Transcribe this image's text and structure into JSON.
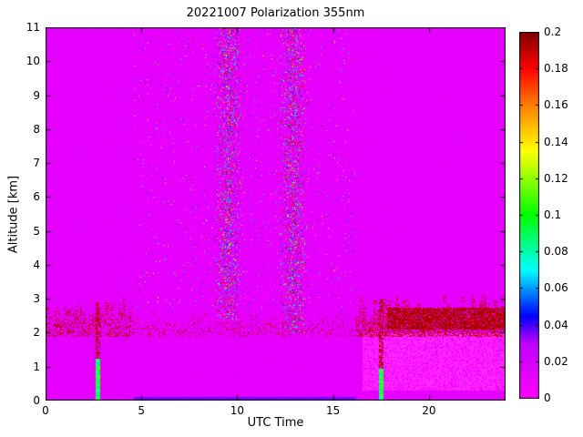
{
  "title": "20221007 Polarization 355nm",
  "axes": {
    "xlabel": "UTC Time",
    "ylabel": "Altitude [km]"
  },
  "chart_data": {
    "type": "heatmap",
    "title": "20221007 Polarization 355nm",
    "xlabel": "UTC Time",
    "ylabel": "Altitude [km]",
    "xlim": [
      0,
      24
    ],
    "ylim": [
      0,
      11
    ],
    "clim": [
      0,
      0.2
    ],
    "x_ticks": [
      0,
      5,
      10,
      15,
      20
    ],
    "y_ticks": [
      0,
      1,
      2,
      3,
      4,
      5,
      6,
      7,
      8,
      9,
      10,
      11
    ],
    "colorbar_ticks": [
      "0",
      "0.02",
      "0.04",
      "0.06",
      "0.08",
      "0.1",
      "0.12",
      "0.14",
      "0.16",
      "0.18",
      "0.2"
    ],
    "colormap": [
      {
        "v": 0.0,
        "c": "#ff00ff"
      },
      {
        "v": 0.03,
        "c": "#c000ff"
      },
      {
        "v": 0.045,
        "c": "#0000ff"
      },
      {
        "v": 0.07,
        "c": "#00ffff"
      },
      {
        "v": 0.1,
        "c": "#00ff00"
      },
      {
        "v": 0.135,
        "c": "#ffff00"
      },
      {
        "v": 0.16,
        "c": "#ff8000"
      },
      {
        "v": 0.18,
        "c": "#ff0000"
      },
      {
        "v": 0.2,
        "c": "#800000"
      }
    ],
    "background_value": 0.012,
    "features": {
      "surface_pink_patch": {
        "x0": 16.5,
        "x1": 24,
        "y0": 0.3,
        "y1": 2.0,
        "value": 0.001
      },
      "noise_region": {
        "x0": 4.6,
        "x1": 16.2,
        "y0": 2.7,
        "y1": 11,
        "density": 0.3,
        "low_frac": 0.965
      },
      "dense_bands": [
        {
          "x0": 8.8,
          "x1": 10.2,
          "y0": 2.4,
          "y1": 11,
          "density": 0.55
        },
        {
          "x0": 12.2,
          "x1": 13.6,
          "y0": 2.0,
          "y1": 11,
          "density": 0.55
        }
      ],
      "boundary_speckle": [
        {
          "x0": 0,
          "x1": 4.6,
          "y0": 1.9,
          "y1": 3.15,
          "density": 0.32,
          "vmin": 0.18,
          "vmax": 0.2
        },
        {
          "x0": 4.6,
          "x1": 16.2,
          "y0": 1.9,
          "y1": 2.7,
          "density": 0.13,
          "vmin": 0.18,
          "vmax": 0.2
        },
        {
          "x0": 16.2,
          "x1": 24,
          "y0": 1.9,
          "y1": 3.25,
          "density": 0.45,
          "vmin": 0.18,
          "vmax": 0.2
        }
      ],
      "solid_layer": {
        "x0": 17.8,
        "x1": 24,
        "y0": 2.1,
        "y1": 2.75,
        "density": 0.78,
        "vmin": 0.185,
        "vmax": 0.2
      },
      "plumes": [
        {
          "x": 2.7,
          "w": 0.22,
          "ytop": 1.25,
          "vmin": 0.07,
          "vmax": 0.12,
          "cap_top": 2.9
        },
        {
          "x": 17.5,
          "w": 0.22,
          "ytop": 0.95,
          "vmin": 0.07,
          "vmax": 0.12,
          "cap_top": 3.0
        }
      ],
      "bottom_line": {
        "x0": 4.6,
        "x1": 16.2,
        "y0": 0.02,
        "y1": 0.12,
        "value": 0.035
      }
    }
  }
}
